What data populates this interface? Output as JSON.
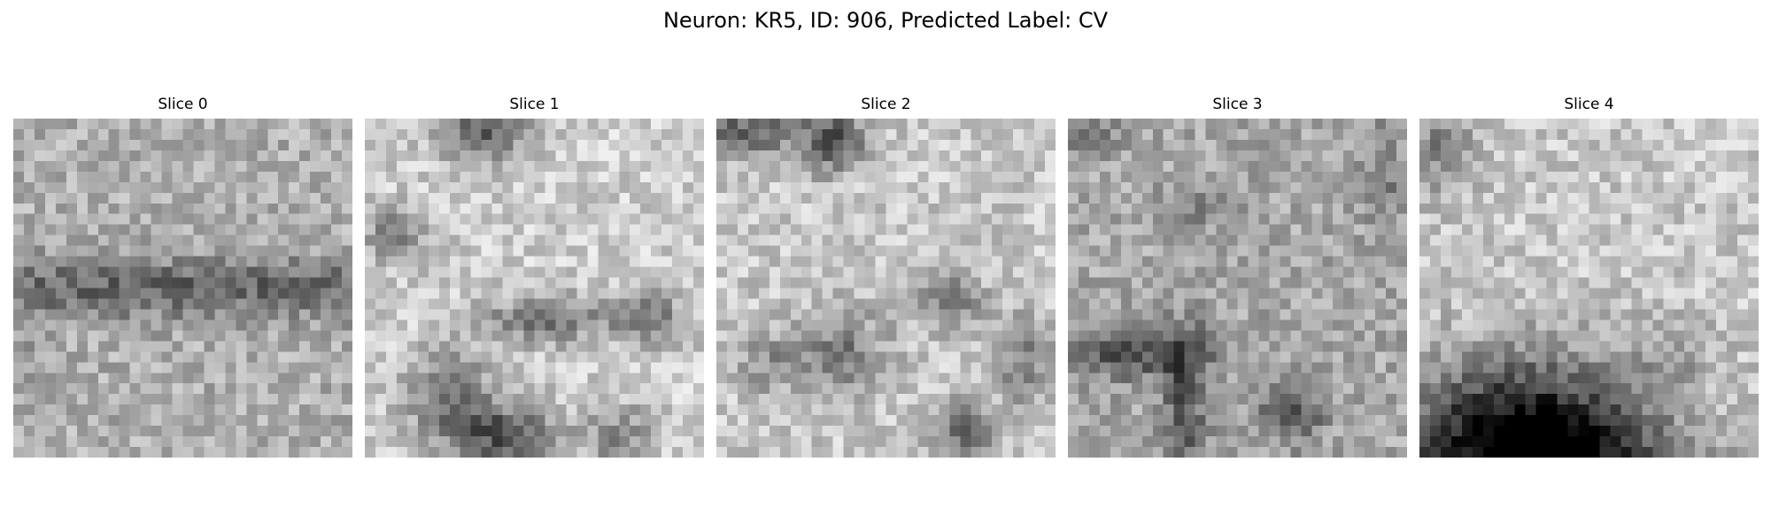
{
  "figure": {
    "title": "Neuron: KR5, ID: 906, Predicted Label: CV",
    "colormap": "gray"
  },
  "slices": [
    {
      "label": "Slice 0",
      "image": "noisy-gray-texture-dark-horizontal-band"
    },
    {
      "label": "Slice 1",
      "image": "noisy-gray-texture-dark-blobs-bottom"
    },
    {
      "label": "Slice 2",
      "image": "noisy-gray-texture-scattered-dark-spots"
    },
    {
      "label": "Slice 3",
      "image": "noisy-gray-texture-dark-lower-left-band"
    },
    {
      "label": "Slice 4",
      "image": "noisy-gray-texture-large-dark-mass-bottom"
    }
  ]
}
